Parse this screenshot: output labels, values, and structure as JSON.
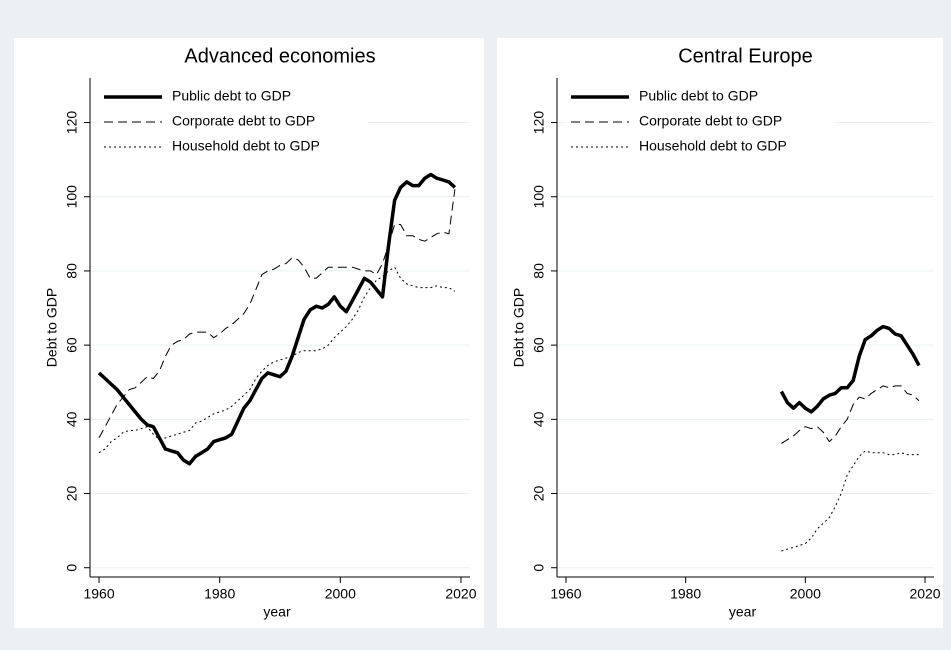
{
  "chart_data": [
    {
      "type": "line",
      "title": "Advanced economies",
      "xlabel": "year",
      "ylabel": "Debt to GDP",
      "xlim": [
        1958.5,
        2021.5
      ],
      "xticks": [
        1960,
        1980,
        2000,
        2020
      ],
      "ylim": [
        -2.5,
        132
      ],
      "yticks": [
        0,
        20,
        40,
        60,
        80,
        100,
        120
      ],
      "grid": true,
      "legend": "top-left",
      "x": [
        1960,
        1961,
        1962,
        1963,
        1964,
        1965,
        1966,
        1967,
        1968,
        1969,
        1970,
        1971,
        1972,
        1973,
        1974,
        1975,
        1976,
        1977,
        1978,
        1979,
        1980,
        1981,
        1982,
        1983,
        1984,
        1985,
        1986,
        1987,
        1988,
        1989,
        1990,
        1991,
        1992,
        1993,
        1994,
        1995,
        1996,
        1997,
        1998,
        1999,
        2000,
        2001,
        2002,
        2003,
        2004,
        2005,
        2006,
        2007,
        2008,
        2009,
        2010,
        2011,
        2012,
        2013,
        2014,
        2015,
        2016,
        2017,
        2018,
        2019
      ],
      "series": [
        {
          "name": "Public debt to GDP",
          "color": "#000000",
          "dash": "solid",
          "width": 3.5,
          "values": [
            52.5,
            51,
            49.5,
            48,
            46,
            44,
            42,
            40,
            38.5,
            38,
            35,
            32,
            31.5,
            31,
            29,
            28,
            30,
            31,
            32,
            34,
            34.5,
            35,
            36,
            39.5,
            43,
            45,
            48,
            51,
            52.5,
            52,
            51.5,
            53,
            57,
            62,
            67,
            69.5,
            70.5,
            70,
            71,
            73,
            70.5,
            69,
            72,
            75,
            78,
            77,
            75,
            73,
            87,
            99,
            102.5,
            104,
            103,
            103,
            105,
            106,
            105,
            104.5,
            104,
            102.5
          ]
        },
        {
          "name": "Corporate debt to GDP",
          "color": "#000000",
          "dash": "dashed",
          "width": 1,
          "values": [
            35,
            38,
            41,
            44,
            46,
            48,
            48.5,
            50,
            51.5,
            51,
            53,
            57,
            60,
            61,
            61.5,
            63,
            63.5,
            63.5,
            63.5,
            62,
            63,
            64.5,
            65.5,
            67,
            68.5,
            71,
            75,
            79,
            80,
            80.5,
            81.5,
            82,
            83.5,
            83,
            81,
            78,
            78,
            79.5,
            81,
            81,
            81,
            81,
            81,
            80.5,
            80,
            80,
            79,
            82,
            87,
            92.5,
            92.5,
            89.5,
            89.5,
            88.5,
            88,
            89,
            90,
            90.5,
            90,
            102
          ]
        },
        {
          "name": "Household debt to GDP",
          "color": "#000000",
          "dash": "dotted",
          "width": 1,
          "values": [
            31,
            32,
            34,
            35,
            36.5,
            37,
            37,
            37.5,
            38,
            36,
            34.5,
            35,
            35.5,
            36,
            36.5,
            37,
            39,
            39.5,
            40.5,
            41.5,
            42,
            42.5,
            43.5,
            45,
            46.5,
            48,
            51,
            53,
            54.5,
            55.5,
            56,
            56.5,
            57,
            58,
            58.5,
            58.5,
            58.5,
            59,
            60,
            62,
            63.5,
            65,
            67,
            69.5,
            73,
            75.5,
            77.5,
            78.5,
            80,
            81,
            78,
            76.5,
            76,
            75.5,
            75.5,
            75.5,
            76,
            75.5,
            75.5,
            74.5
          ]
        }
      ]
    },
    {
      "type": "line",
      "title": "Central Europe",
      "xlabel": "year",
      "ylabel": "Debt to GDP",
      "xlim": [
        1958.5,
        2021.5
      ],
      "xticks": [
        1960,
        1980,
        2000,
        2020
      ],
      "ylim": [
        -2.5,
        132
      ],
      "yticks": [
        0,
        20,
        40,
        60,
        80,
        100,
        120
      ],
      "grid": true,
      "legend": "top-left",
      "x": [
        1996,
        1997,
        1998,
        1999,
        2000,
        2001,
        2002,
        2003,
        2004,
        2005,
        2006,
        2007,
        2008,
        2009,
        2010,
        2011,
        2012,
        2013,
        2014,
        2015,
        2016,
        2017,
        2018,
        2019
      ],
      "series": [
        {
          "name": "Public debt to GDP",
          "color": "#000000",
          "dash": "solid",
          "width": 3.5,
          "values": [
            47.5,
            44.5,
            43,
            44.5,
            43,
            42,
            43.5,
            45.5,
            46.5,
            47,
            48.5,
            48.5,
            50.5,
            57,
            61.5,
            62.5,
            64,
            65,
            64.5,
            63,
            62.5,
            60,
            57.5,
            54.5
          ]
        },
        {
          "name": "Corporate debt to GDP",
          "color": "#000000",
          "dash": "dashed",
          "width": 1,
          "values": [
            33.5,
            34.5,
            35.5,
            37,
            38,
            37.5,
            38,
            36.5,
            34,
            35.5,
            38,
            40,
            44,
            46,
            45.5,
            47,
            48,
            49,
            48.5,
            49,
            49,
            47,
            46.5,
            45
          ]
        },
        {
          "name": "Household debt to GDP",
          "color": "#000000",
          "dash": "dotted",
          "width": 1,
          "values": [
            4.5,
            5,
            5.5,
            6,
            6.5,
            8,
            10.5,
            12,
            13.5,
            16.5,
            20,
            25,
            27.5,
            30,
            31.5,
            31,
            31,
            31,
            30.5,
            30.5,
            31,
            30.5,
            30.5,
            30.5
          ]
        }
      ]
    }
  ]
}
